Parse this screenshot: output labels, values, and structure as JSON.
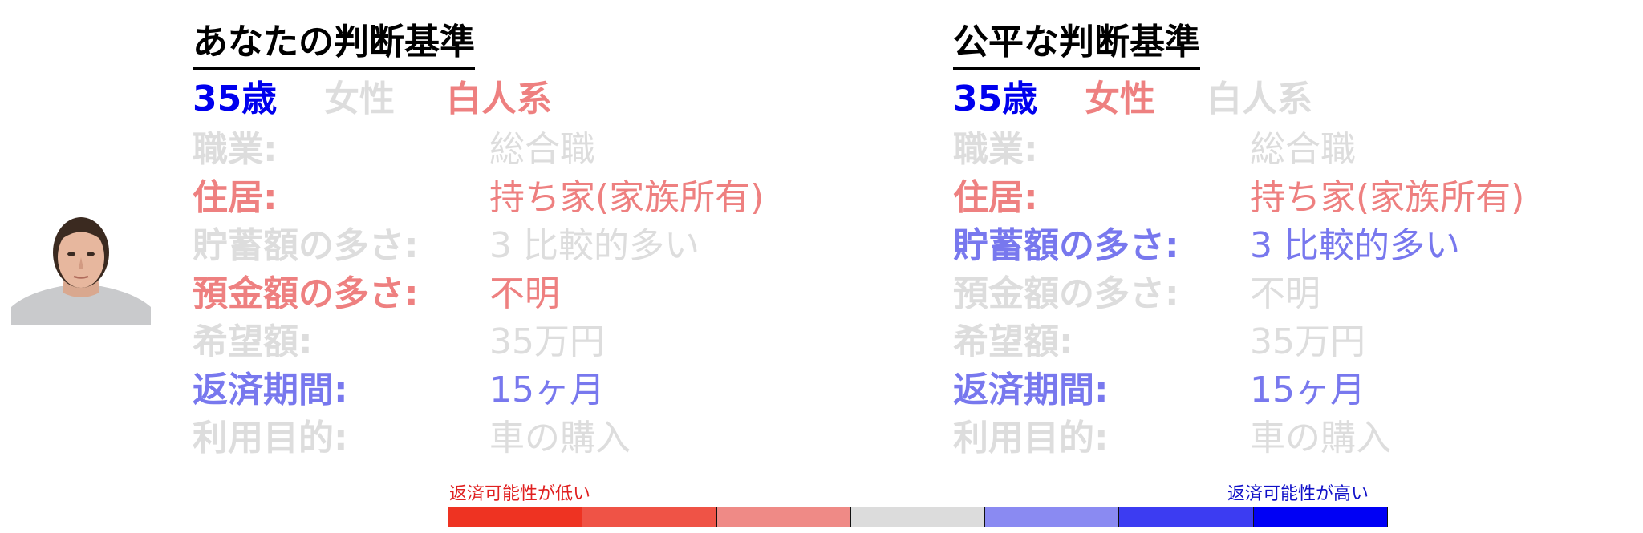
{
  "colors": {
    "gray": "#dddddd",
    "blue_strong": "#0000ee",
    "blue_mid": "#7878ee",
    "red_mid": "#ee8080",
    "scale": [
      "#ee3322",
      "#ef5346",
      "#ef8a86",
      "#dcdcdc",
      "#8a8af2",
      "#3c3cf2",
      "#0000f5"
    ]
  },
  "left": {
    "title": "あなたの判断基準",
    "demographics": [
      {
        "label": "35歳",
        "color": "#0000ee"
      },
      {
        "label": "女性",
        "color": "#dddddd"
      },
      {
        "label": "白人系",
        "color": "#ee8080"
      }
    ],
    "rows": [
      {
        "key": "職業:",
        "value": "総合職",
        "color": "#dddddd"
      },
      {
        "key": "住居:",
        "value": "持ち家(家族所有)",
        "color": "#ee8080"
      },
      {
        "key": "貯蓄額の多さ:",
        "value": "3 比較的多い",
        "color": "#dddddd"
      },
      {
        "key": "預金額の多さ:",
        "value": "不明",
        "color": "#ee8080"
      },
      {
        "key": "希望額:",
        "value": "35万円",
        "color": "#dddddd"
      },
      {
        "key": "返済期間:",
        "value": "15ヶ月",
        "color": "#7878ee"
      },
      {
        "key": "利用目的:",
        "value": "車の購入",
        "color": "#dddddd"
      }
    ]
  },
  "right": {
    "title": "公平な判断基準",
    "demographics": [
      {
        "label": "35歳",
        "color": "#0000ee"
      },
      {
        "label": "女性",
        "color": "#ee8080"
      },
      {
        "label": "白人系",
        "color": "#dddddd"
      }
    ],
    "rows": [
      {
        "key": "職業:",
        "value": "総合職",
        "color": "#dddddd"
      },
      {
        "key": "住居:",
        "value": "持ち家(家族所有)",
        "color": "#ee8080"
      },
      {
        "key": "貯蓄額の多さ:",
        "value": "3 比較的多い",
        "color": "#7878ee"
      },
      {
        "key": "預金額の多さ:",
        "value": "不明",
        "color": "#dddddd"
      },
      {
        "key": "希望額:",
        "value": "35万円",
        "color": "#dddddd"
      },
      {
        "key": "返済期間:",
        "value": "15ヶ月",
        "color": "#7878ee"
      },
      {
        "key": "利用目的:",
        "value": "車の購入",
        "color": "#dddddd"
      }
    ]
  },
  "legend": {
    "low_label": "返済可能性が低い",
    "high_label": "返済可能性が高い"
  }
}
